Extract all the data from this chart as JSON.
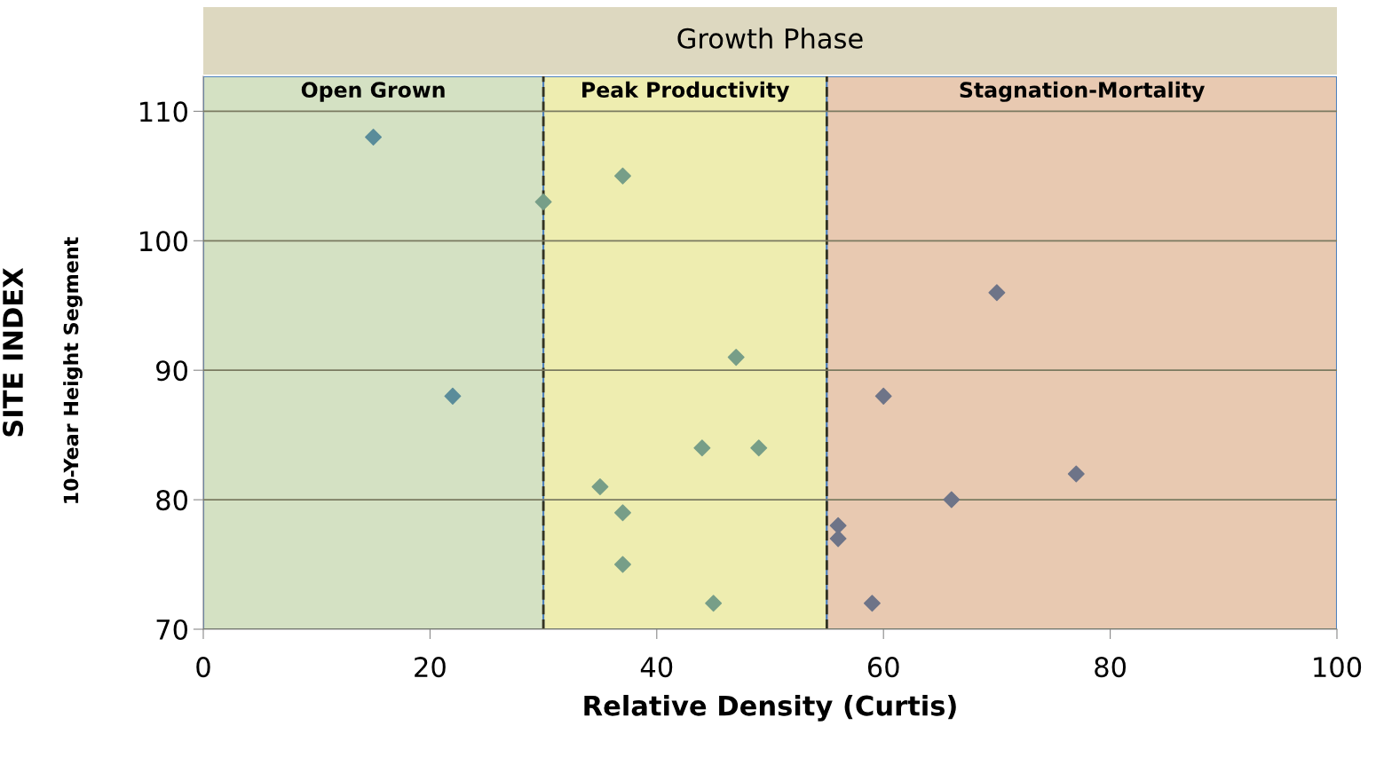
{
  "chart_data": {
    "type": "scatter",
    "title": "Growth Phase",
    "xlabel": "Relative Density (Curtis)",
    "ylabel": "SITE INDEX",
    "annotations": [
      "10-Year Height Segment"
    ],
    "series": [
      {
        "color": "#5a8c9a",
        "x": [
          15,
          22
        ],
        "values": [
          108,
          88
        ]
      },
      {
        "color": "#779e88",
        "x": [
          30,
          37,
          47,
          44,
          49,
          35,
          37,
          37,
          45
        ],
        "values": [
          103,
          105,
          91,
          84,
          84,
          81,
          79,
          75,
          72
        ]
      },
      {
        "color": "#6e7488",
        "x": [
          56,
          56,
          59,
          60,
          66,
          70,
          77
        ],
        "values": [
          78,
          77,
          72,
          88,
          80,
          96,
          82
        ]
      }
    ],
    "bands": [
      {
        "axis": "x",
        "from": 0,
        "to": 30,
        "label": "Open Grown",
        "color": "#d4e1c3"
      },
      {
        "axis": "x",
        "from": 30,
        "to": 55,
        "label": "Peak Productivity",
        "color": "#eeedb0"
      },
      {
        "axis": "x",
        "from": 55,
        "to": 100,
        "label": "Stagnation-Mortality",
        "color": "#e8c9b1"
      }
    ],
    "ref_lines": [
      {
        "axis": "x",
        "value": 30,
        "line_style": "dashed",
        "color": "#333322"
      },
      {
        "axis": "x",
        "value": 55,
        "line_style": "dashed",
        "color": "#333322"
      }
    ],
    "xlim": [
      0,
      100
    ],
    "xticks": [
      0,
      20,
      40,
      60,
      80,
      100
    ],
    "ylim": [
      70,
      112.7
    ],
    "yticks": [
      70,
      80,
      90,
      100,
      110
    ],
    "grid": "y",
    "marker": "diamond"
  }
}
